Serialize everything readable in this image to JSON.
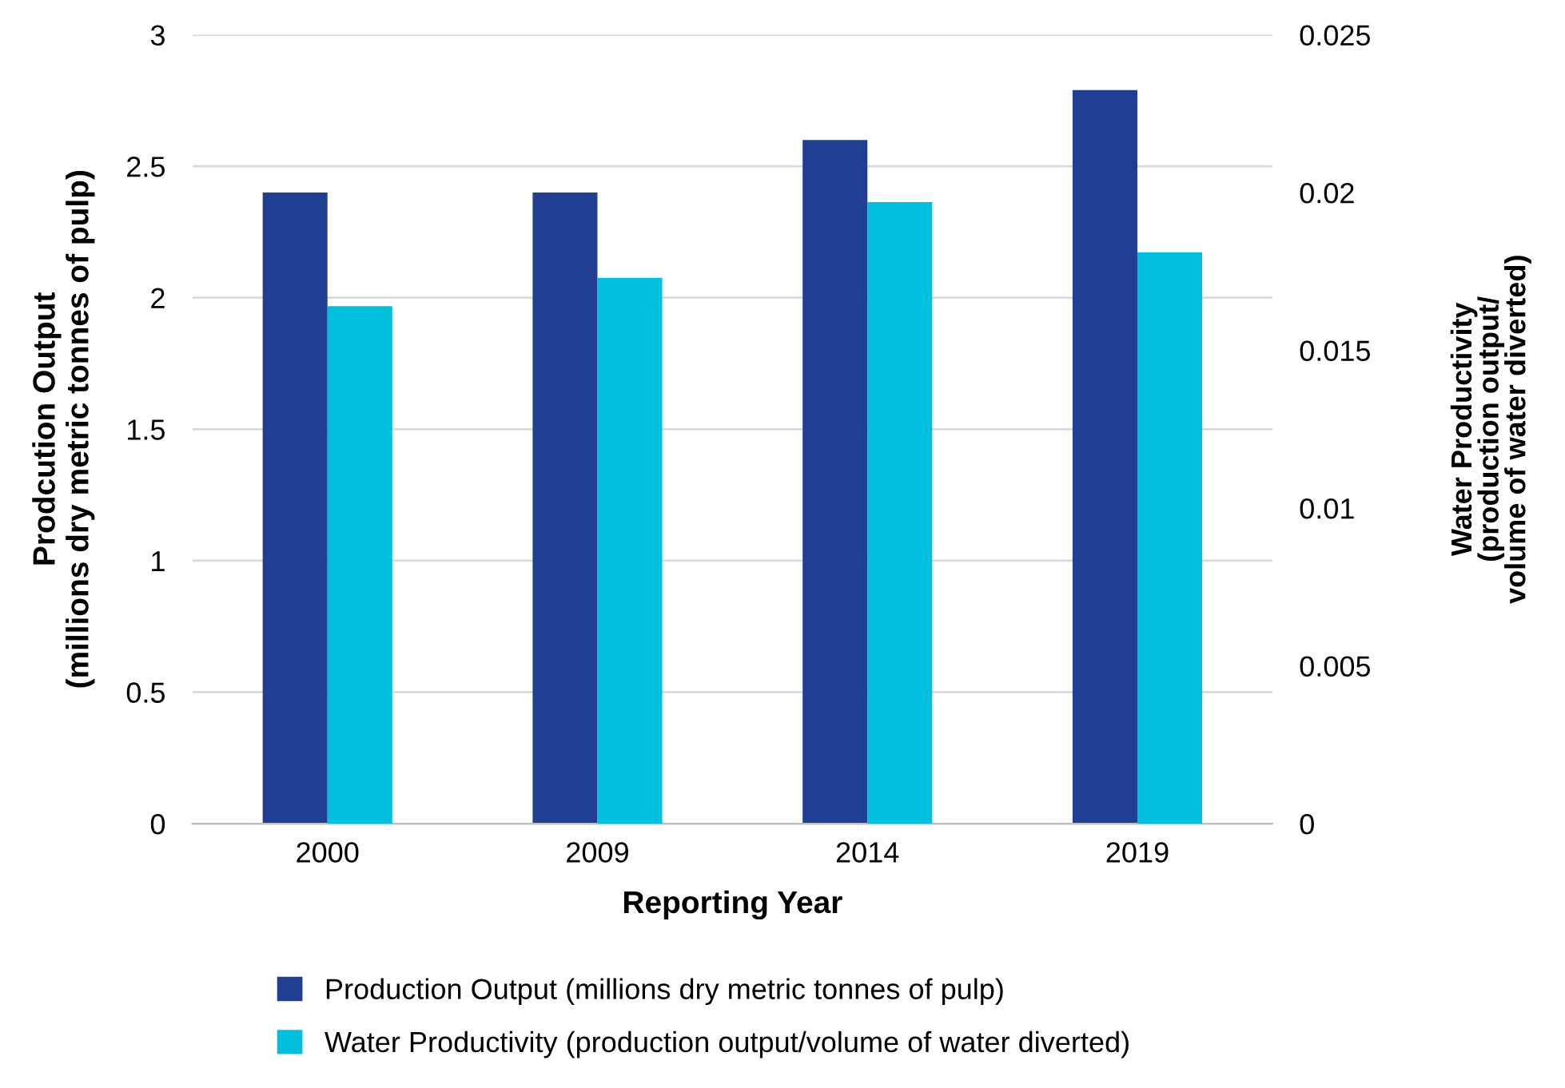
{
  "chart_data": {
    "type": "bar",
    "xlabel": "Reporting Year",
    "ylabel": "Prodcution Output\n(millions dry metric tonnes of pulp)",
    "y2label": "Water Productivity\n(production output/\nvolume of water diverted)",
    "categories": [
      "2000",
      "2009",
      "2014",
      "2019"
    ],
    "series": [
      {
        "name": "Production Output (millions dry metric tonnes of pulp)",
        "color": "#203f93",
        "values": [
          2.4,
          2.4,
          2.6,
          2.79
        ]
      },
      {
        "name": "Water Productivity (production output/volume of water diverted)",
        "color": "#00c0dd",
        "values": [
          0.0164,
          0.0173,
          0.0197,
          0.0181
        ],
        "axis": "y2"
      }
    ],
    "ylim": [
      0,
      3
    ],
    "yticks": [
      0,
      0.5,
      1,
      1.5,
      2,
      2.5,
      3
    ],
    "y2lim": [
      0,
      0.025
    ],
    "y2ticks": [
      0,
      0.005,
      0.01,
      0.015,
      0.02,
      0.025
    ],
    "grid": "y",
    "legend": "bottom"
  }
}
